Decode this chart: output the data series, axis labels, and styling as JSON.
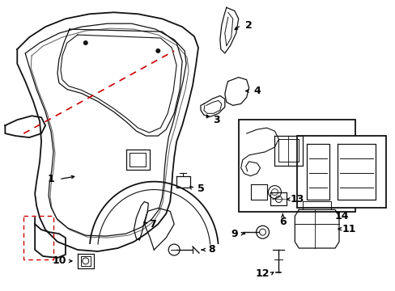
{
  "background_color": "#ffffff",
  "line_color": "#111111",
  "red_dashed_color": "#cc0000",
  "label_color": "#000000",
  "figsize": [
    4.89,
    3.6
  ],
  "dpi": 100
}
